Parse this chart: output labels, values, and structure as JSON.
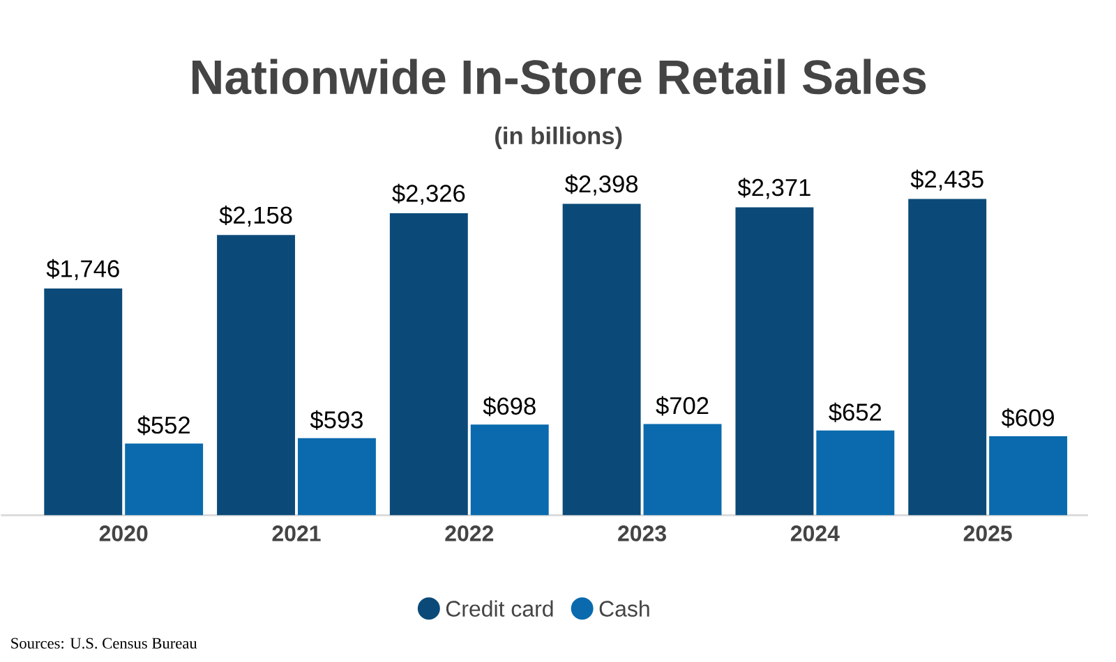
{
  "chart_data": {
    "type": "bar",
    "title": "Nationwide In-Store Retail Sales",
    "subtitle": "(in billions)",
    "categories": [
      "2020",
      "2021",
      "2022",
      "2023",
      "2024",
      "2025"
    ],
    "series": [
      {
        "name": "Credit card",
        "color": "#0b4a78",
        "values": [
          1746,
          2158,
          2326,
          2398,
          2371,
          2435
        ],
        "value_labels": [
          "$1,746",
          "$2,158",
          "$2,326",
          "$2,398",
          "$2,371",
          "$2,435"
        ]
      },
      {
        "name": "Cash",
        "color": "#0a6aad",
        "values": [
          552,
          593,
          698,
          702,
          652,
          609
        ],
        "value_labels": [
          "$552",
          "$593",
          "$698",
          "$702",
          "$652",
          "$609"
        ]
      }
    ],
    "legend": "bottom",
    "annotations": [
      "Sources: U.S. Census Bureau"
    ]
  }
}
